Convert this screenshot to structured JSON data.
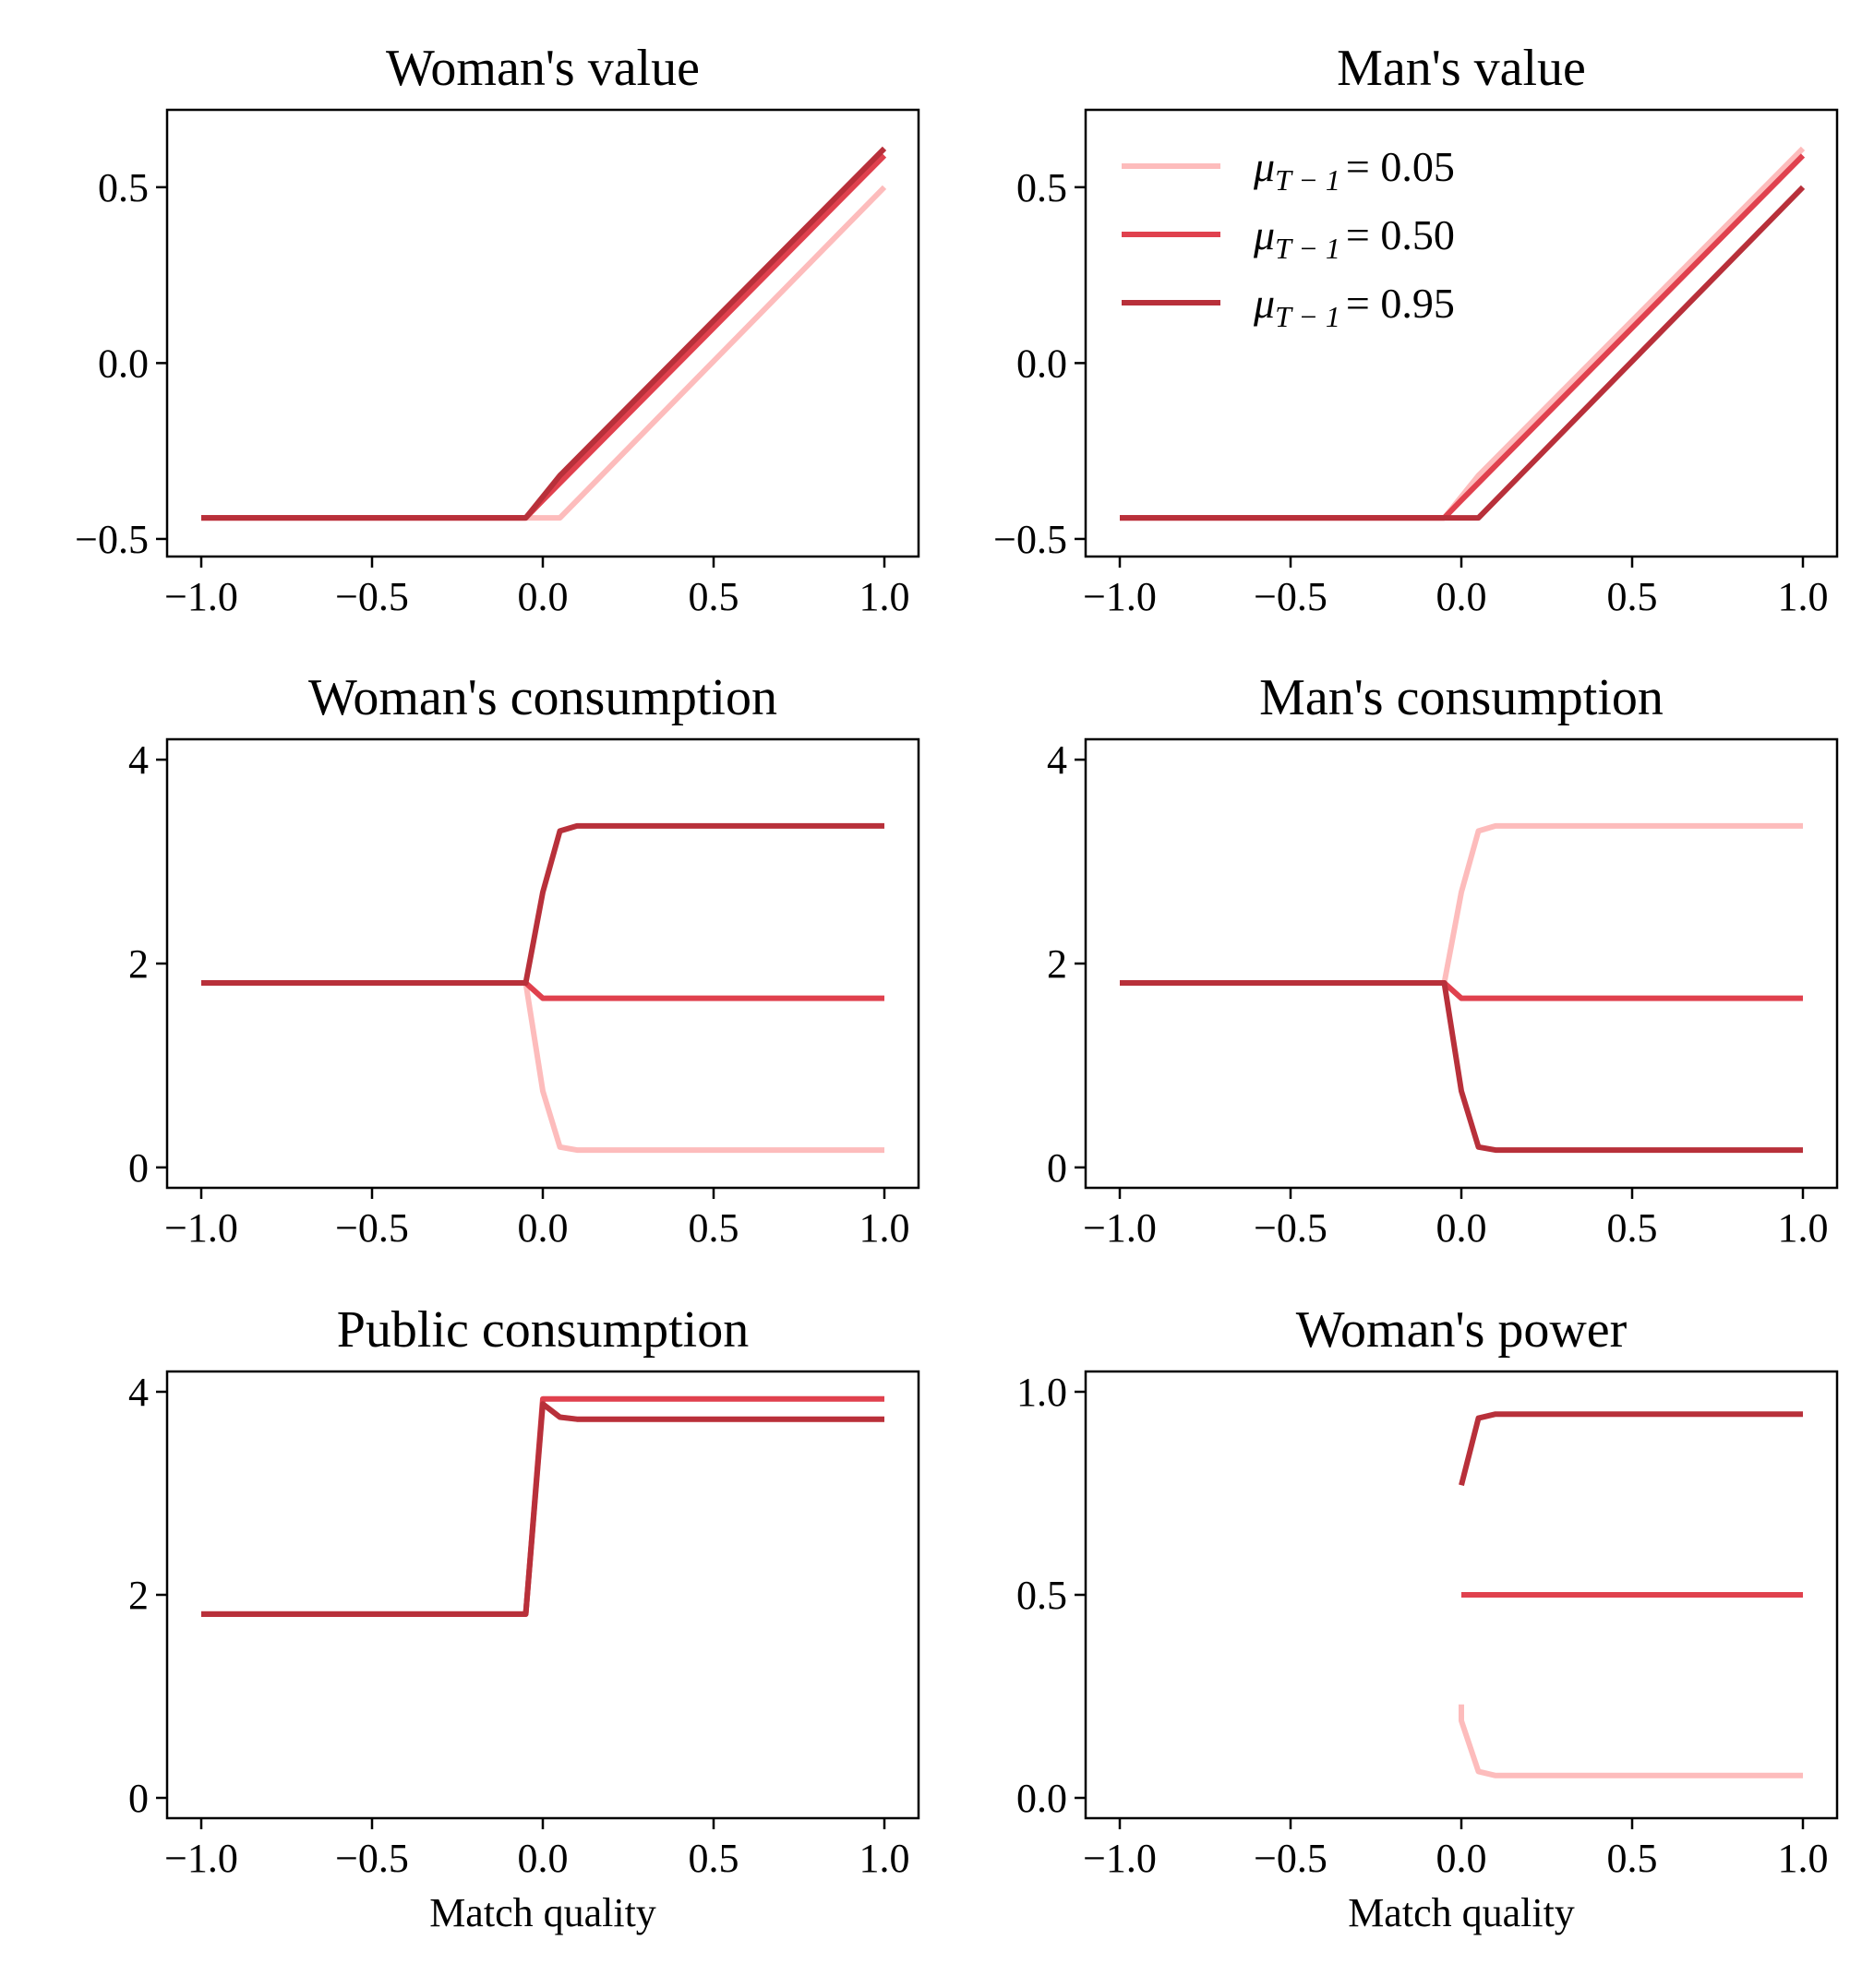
{
  "colors": {
    "mu_005": "#fdbcbc",
    "mu_050": "#e0414e",
    "mu_095": "#b8303a"
  },
  "legend": {
    "entries": [
      {
        "prefix": "μ",
        "sub": "T − 1",
        "value": "= 0.05",
        "color": "#fdbcbc"
      },
      {
        "prefix": "μ",
        "sub": "T − 1",
        "value": "= 0.50",
        "color": "#e0414e"
      },
      {
        "prefix": "μ",
        "sub": "T − 1",
        "value": "= 0.95",
        "color": "#b8303a"
      }
    ]
  },
  "chart_data": [
    {
      "type": "line",
      "title": "Woman's value",
      "xlabel": "",
      "ylabel": "",
      "xlim": [
        -1.1,
        1.1
      ],
      "ylim": [
        -0.55,
        0.72
      ],
      "xticks": [
        -1.0,
        -0.5,
        0.0,
        0.5,
        1.0
      ],
      "xticklabels": [
        "−1.0",
        "−0.5",
        "0.0",
        "0.5",
        "1.0"
      ],
      "yticks": [
        -0.5,
        0.0,
        0.5
      ],
      "yticklabels": [
        "−0.5",
        "0.0",
        "0.5"
      ],
      "series": [
        {
          "color": "#fdbcbc",
          "x": [
            -1.0,
            0.05,
            1.0
          ],
          "y": [
            -0.44,
            -0.44,
            0.5
          ]
        },
        {
          "color": "#e0414e",
          "x": [
            -1.0,
            -0.05,
            0.0,
            1.0
          ],
          "y": [
            -0.44,
            -0.44,
            -0.39,
            0.59
          ]
        },
        {
          "color": "#b8303a",
          "x": [
            -1.0,
            -0.05,
            0.05,
            1.0
          ],
          "y": [
            -0.44,
            -0.44,
            -0.32,
            0.61
          ]
        }
      ]
    },
    {
      "type": "line",
      "title": "Man's value",
      "xlabel": "",
      "ylabel": "",
      "xlim": [
        -1.1,
        1.1
      ],
      "ylim": [
        -0.55,
        0.72
      ],
      "xticks": [
        -1.0,
        -0.5,
        0.0,
        0.5,
        1.0
      ],
      "xticklabels": [
        "−1.0",
        "−0.5",
        "0.0",
        "0.5",
        "1.0"
      ],
      "yticks": [
        -0.5,
        0.0,
        0.5
      ],
      "yticklabels": [
        "−0.5",
        "0.0",
        "0.5"
      ],
      "legend": "upper left",
      "series": [
        {
          "color": "#fdbcbc",
          "x": [
            -1.0,
            -0.05,
            0.05,
            1.0
          ],
          "y": [
            -0.44,
            -0.44,
            -0.32,
            0.61
          ]
        },
        {
          "color": "#e0414e",
          "x": [
            -1.0,
            -0.05,
            0.0,
            1.0
          ],
          "y": [
            -0.44,
            -0.44,
            -0.39,
            0.59
          ]
        },
        {
          "color": "#b8303a",
          "x": [
            -1.0,
            0.05,
            1.0
          ],
          "y": [
            -0.44,
            -0.44,
            0.5
          ]
        }
      ]
    },
    {
      "type": "line",
      "title": "Woman's consumption",
      "xlabel": "",
      "ylabel": "",
      "xlim": [
        -1.1,
        1.1
      ],
      "ylim": [
        -0.2,
        4.2
      ],
      "xticks": [
        -1.0,
        -0.5,
        0.0,
        0.5,
        1.0
      ],
      "xticklabels": [
        "−1.0",
        "−0.5",
        "0.0",
        "0.5",
        "1.0"
      ],
      "yticks": [
        0,
        2,
        4
      ],
      "yticklabels": [
        "0",
        "2",
        "4"
      ],
      "series": [
        {
          "color": "#fdbcbc",
          "x": [
            -1.0,
            -0.05,
            0.0,
            0.05,
            0.1,
            1.0
          ],
          "y": [
            1.81,
            1.81,
            0.75,
            0.2,
            0.17,
            0.17
          ]
        },
        {
          "color": "#e0414e",
          "x": [
            -1.0,
            -0.05,
            0.0,
            1.0
          ],
          "y": [
            1.81,
            1.81,
            1.66,
            1.66
          ]
        },
        {
          "color": "#b8303a",
          "x": [
            -1.0,
            -0.05,
            0.0,
            0.05,
            0.1,
            1.0
          ],
          "y": [
            1.81,
            1.81,
            2.7,
            3.3,
            3.35,
            3.35
          ]
        }
      ]
    },
    {
      "type": "line",
      "title": "Man's consumption",
      "xlabel": "",
      "ylabel": "",
      "xlim": [
        -1.1,
        1.1
      ],
      "ylim": [
        -0.2,
        4.2
      ],
      "xticks": [
        -1.0,
        -0.5,
        0.0,
        0.5,
        1.0
      ],
      "xticklabels": [
        "−1.0",
        "−0.5",
        "0.0",
        "0.5",
        "1.0"
      ],
      "yticks": [
        0,
        2,
        4
      ],
      "yticklabels": [
        "0",
        "2",
        "4"
      ],
      "series": [
        {
          "color": "#fdbcbc",
          "x": [
            -1.0,
            -0.05,
            0.0,
            0.05,
            0.1,
            1.0
          ],
          "y": [
            1.81,
            1.81,
            2.7,
            3.3,
            3.35,
            3.35
          ]
        },
        {
          "color": "#e0414e",
          "x": [
            -1.0,
            -0.05,
            0.0,
            1.0
          ],
          "y": [
            1.81,
            1.81,
            1.66,
            1.66
          ]
        },
        {
          "color": "#b8303a",
          "x": [
            -1.0,
            -0.05,
            0.0,
            0.05,
            0.1,
            1.0
          ],
          "y": [
            1.81,
            1.81,
            0.75,
            0.2,
            0.17,
            0.17
          ]
        }
      ]
    },
    {
      "type": "line",
      "title": "Public consumption",
      "xlabel": "Match quality",
      "ylabel": "",
      "xlim": [
        -1.1,
        1.1
      ],
      "ylim": [
        -0.2,
        4.2
      ],
      "xticks": [
        -1.0,
        -0.5,
        0.0,
        0.5,
        1.0
      ],
      "xticklabels": [
        "−1.0",
        "−0.5",
        "0.0",
        "0.5",
        "1.0"
      ],
      "yticks": [
        0,
        2,
        4
      ],
      "yticklabels": [
        "0",
        "2",
        "4"
      ],
      "series": [
        {
          "color": "#fdbcbc",
          "x": [
            -1.0,
            -0.05,
            0.0,
            0.05,
            0.1,
            1.0
          ],
          "y": [
            1.81,
            1.81,
            3.88,
            3.75,
            3.73,
            3.73
          ]
        },
        {
          "color": "#e0414e",
          "x": [
            -1.0,
            -0.05,
            0.0,
            1.0
          ],
          "y": [
            1.81,
            1.81,
            3.93,
            3.93
          ]
        },
        {
          "color": "#b8303a",
          "x": [
            -1.0,
            -0.05,
            0.0,
            0.05,
            0.1,
            1.0
          ],
          "y": [
            1.81,
            1.81,
            3.88,
            3.75,
            3.73,
            3.73
          ]
        }
      ]
    },
    {
      "type": "line",
      "title": "Woman's power",
      "xlabel": "Match quality",
      "ylabel": "",
      "xlim": [
        -1.1,
        1.1
      ],
      "ylim": [
        -0.05,
        1.05
      ],
      "xticks": [
        -1.0,
        -0.5,
        0.0,
        0.5,
        1.0
      ],
      "xticklabels": [
        "−1.0",
        "−0.5",
        "0.0",
        "0.5",
        "1.0"
      ],
      "yticks": [
        0.0,
        0.5,
        1.0
      ],
      "yticklabels": [
        "0.0",
        "0.5",
        "1.0"
      ],
      "series": [
        {
          "color": "#fdbcbc",
          "x": [
            0.0,
            0.0,
            0.05,
            0.1,
            1.0
          ],
          "y": [
            0.23,
            0.19,
            0.065,
            0.055,
            0.055
          ]
        },
        {
          "color": "#e0414e",
          "x": [
            0.0,
            1.0
          ],
          "y": [
            0.5,
            0.5
          ]
        },
        {
          "color": "#b8303a",
          "x": [
            0.0,
            0.05,
            0.1,
            1.0
          ],
          "y": [
            0.77,
            0.935,
            0.945,
            0.945
          ]
        }
      ]
    }
  ]
}
